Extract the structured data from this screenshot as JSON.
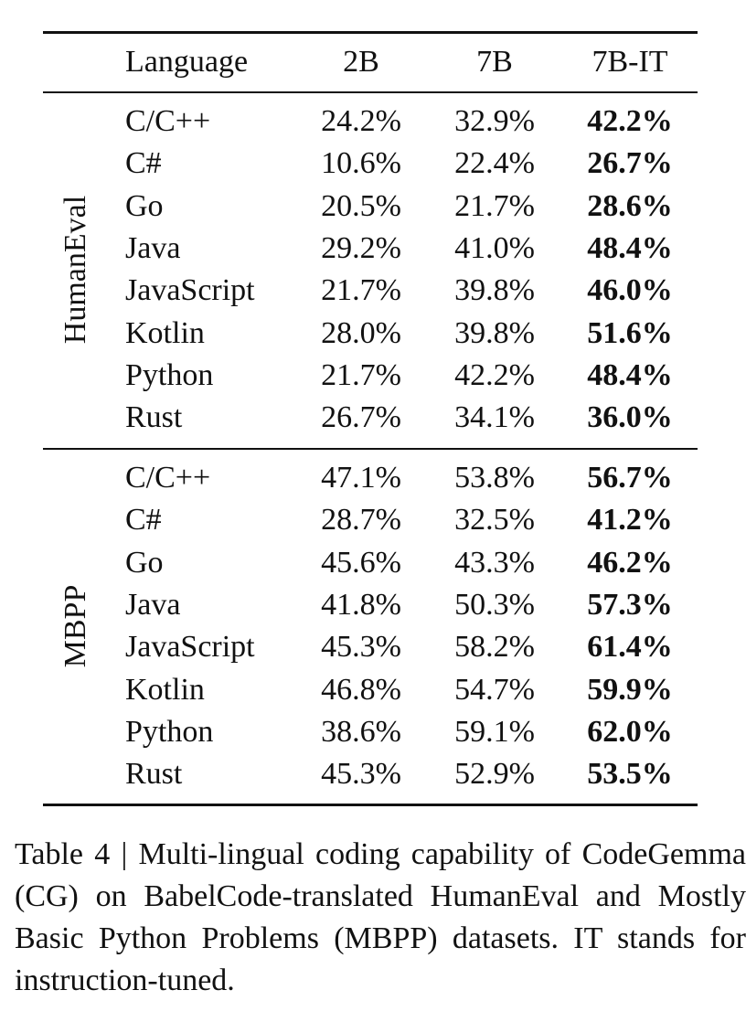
{
  "table": {
    "header": [
      "Language",
      "2B",
      "7B",
      "7B-IT"
    ],
    "groups": [
      {
        "name": "HumanEval",
        "rows": [
          [
            "C/C++",
            "24.2%",
            "32.9%",
            "42.2%"
          ],
          [
            "C#",
            "10.6%",
            "22.4%",
            "26.7%"
          ],
          [
            "Go",
            "20.5%",
            "21.7%",
            "28.6%"
          ],
          [
            "Java",
            "29.2%",
            "41.0%",
            "48.4%"
          ],
          [
            "JavaScript",
            "21.7%",
            "39.8%",
            "46.0%"
          ],
          [
            "Kotlin",
            "28.0%",
            "39.8%",
            "51.6%"
          ],
          [
            "Python",
            "21.7%",
            "42.2%",
            "48.4%"
          ],
          [
            "Rust",
            "26.7%",
            "34.1%",
            "36.0%"
          ]
        ]
      },
      {
        "name": "MBPP",
        "rows": [
          [
            "C/C++",
            "47.1%",
            "53.8%",
            "56.7%"
          ],
          [
            "C#",
            "28.7%",
            "32.5%",
            "41.2%"
          ],
          [
            "Go",
            "45.6%",
            "43.3%",
            "46.2%"
          ],
          [
            "Java",
            "41.8%",
            "50.3%",
            "57.3%"
          ],
          [
            "JavaScript",
            "45.3%",
            "58.2%",
            "61.4%"
          ],
          [
            "Kotlin",
            "46.8%",
            "54.7%",
            "59.9%"
          ],
          [
            "Python",
            "38.6%",
            "59.1%",
            "62.0%"
          ],
          [
            "Rust",
            "45.3%",
            "52.9%",
            "53.5%"
          ]
        ]
      }
    ]
  },
  "caption": "Table 4 | Multi-lingual coding capability of CodeGemma (CG) on BabelCode-translated HumanEval and Mostly Basic Python Problems (MBPP) datasets. IT stands for instruction-tuned."
}
